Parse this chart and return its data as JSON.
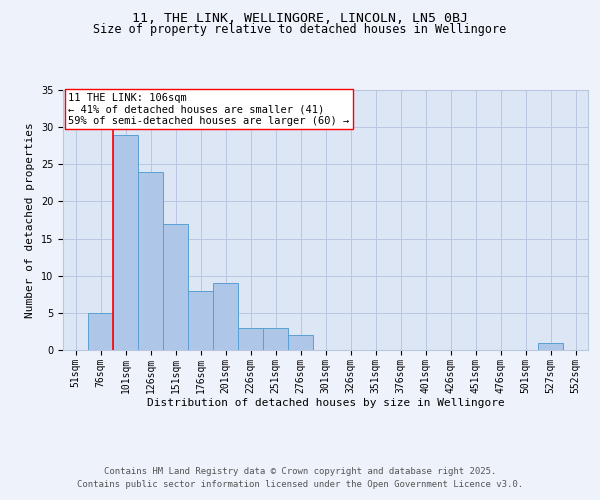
{
  "title": "11, THE LINK, WELLINGORE, LINCOLN, LN5 0BJ",
  "subtitle": "Size of property relative to detached houses in Wellingore",
  "xlabel": "Distribution of detached houses by size in Wellingore",
  "ylabel": "Number of detached properties",
  "bins": [
    "51sqm",
    "76sqm",
    "101sqm",
    "126sqm",
    "151sqm",
    "176sqm",
    "201sqm",
    "226sqm",
    "251sqm",
    "276sqm",
    "301sqm",
    "326sqm",
    "351sqm",
    "376sqm",
    "401sqm",
    "426sqm",
    "451sqm",
    "476sqm",
    "501sqm",
    "527sqm",
    "552sqm"
  ],
  "values": [
    0,
    5,
    29,
    24,
    17,
    8,
    9,
    3,
    3,
    2,
    0,
    0,
    0,
    0,
    0,
    0,
    0,
    0,
    0,
    1,
    0
  ],
  "bar_color": "#aec6e8",
  "bar_edge_color": "#5a9fd4",
  "highlight_line_index": 2,
  "annotation_text": "11 THE LINK: 106sqm\n← 41% of detached houses are smaller (41)\n59% of semi-detached houses are larger (60) →",
  "ylim": [
    0,
    35
  ],
  "yticks": [
    0,
    5,
    10,
    15,
    20,
    25,
    30,
    35
  ],
  "footer_line1": "Contains HM Land Registry data © Crown copyright and database right 2025.",
  "footer_line2": "Contains public sector information licensed under the Open Government Licence v3.0.",
  "bg_color": "#eef2fb",
  "plot_bg_color": "#dce6f5",
  "grid_color": "#b8c8e0",
  "title_fontsize": 9.5,
  "subtitle_fontsize": 8.5,
  "axis_label_fontsize": 8,
  "tick_fontsize": 7,
  "annotation_fontsize": 7.5,
  "footer_fontsize": 6.5
}
